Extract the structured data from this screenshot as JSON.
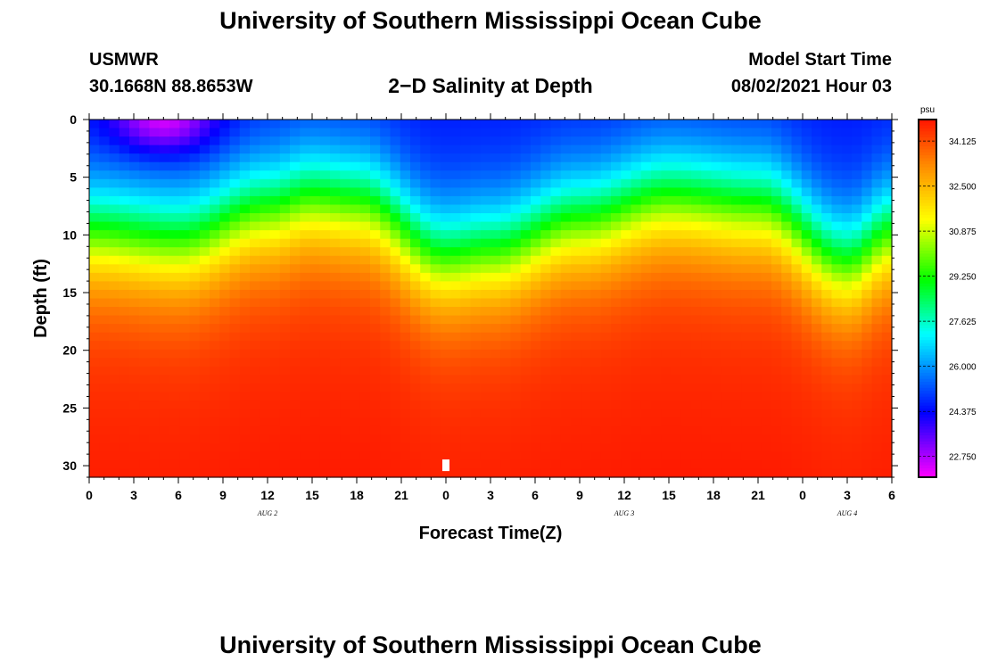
{
  "header": {
    "title": "University of Southern Mississippi Ocean Cube",
    "station_id": "USMWR",
    "coords": "30.1668N  88.8653W",
    "plot_title": "2−D Salinity at Depth",
    "model_start_label": "Model Start Time",
    "model_start_value": "08/02/2021 Hour 03"
  },
  "footer": {
    "title": "University of Southern Mississippi Ocean Cube"
  },
  "chart_data": {
    "type": "heatmap",
    "title": "2-D Salinity at Depth",
    "xlabel": "Forecast Time(Z)",
    "ylabel": "Depth (ft)",
    "x_range_hours": [
      0,
      54
    ],
    "y_range_ft": [
      0,
      31
    ],
    "y_inverted": true,
    "x_tick_values": [
      0,
      3,
      6,
      9,
      12,
      15,
      18,
      21,
      24,
      27,
      30,
      33,
      36,
      39,
      42,
      45,
      48,
      51,
      54
    ],
    "x_tick_labels": [
      "0",
      "3",
      "6",
      "9",
      "12",
      "15",
      "18",
      "21",
      "0",
      "3",
      "6",
      "9",
      "12",
      "15",
      "18",
      "21",
      "0",
      "3",
      "6"
    ],
    "y_tick_values": [
      0,
      5,
      10,
      15,
      20,
      25,
      30
    ],
    "y_tick_labels": [
      "0",
      "5",
      "10",
      "15",
      "20",
      "25",
      "30"
    ],
    "date_labels": [
      {
        "hour": 12,
        "text": "AUG 2"
      },
      {
        "hour": 36,
        "text": "AUG 3"
      },
      {
        "hour": 51,
        "text": "AUG 4"
      }
    ],
    "colorbar": {
      "unit": "psu",
      "range": [
        22.0,
        34.9
      ],
      "tick_values": [
        34.125,
        32.5,
        30.875,
        29.25,
        27.625,
        26.0,
        24.375,
        22.75
      ],
      "tick_labels": [
        "34.125",
        "32.500",
        "30.875",
        "29.250",
        "27.625",
        "26.000",
        "24.375",
        "22.750"
      ]
    },
    "bottom_depth_ft": 31,
    "marker": {
      "hour": 24,
      "depth_ft": 30
    },
    "field_approximation": {
      "surface_salinity_minimum_psu": 22.3,
      "deep_salinity_psu": 34.5,
      "halocline_depth_ft_by_hour": [
        [
          0,
          9.8
        ],
        [
          6,
          10.5
        ],
        [
          12,
          7.8
        ],
        [
          15,
          6.8
        ],
        [
          18,
          7.2
        ],
        [
          24,
          12.0
        ],
        [
          27,
          11.5
        ],
        [
          33,
          8.8
        ],
        [
          39,
          6.8
        ],
        [
          45,
          7.5
        ],
        [
          51,
          12.5
        ],
        [
          54,
          10.0
        ]
      ]
    }
  }
}
